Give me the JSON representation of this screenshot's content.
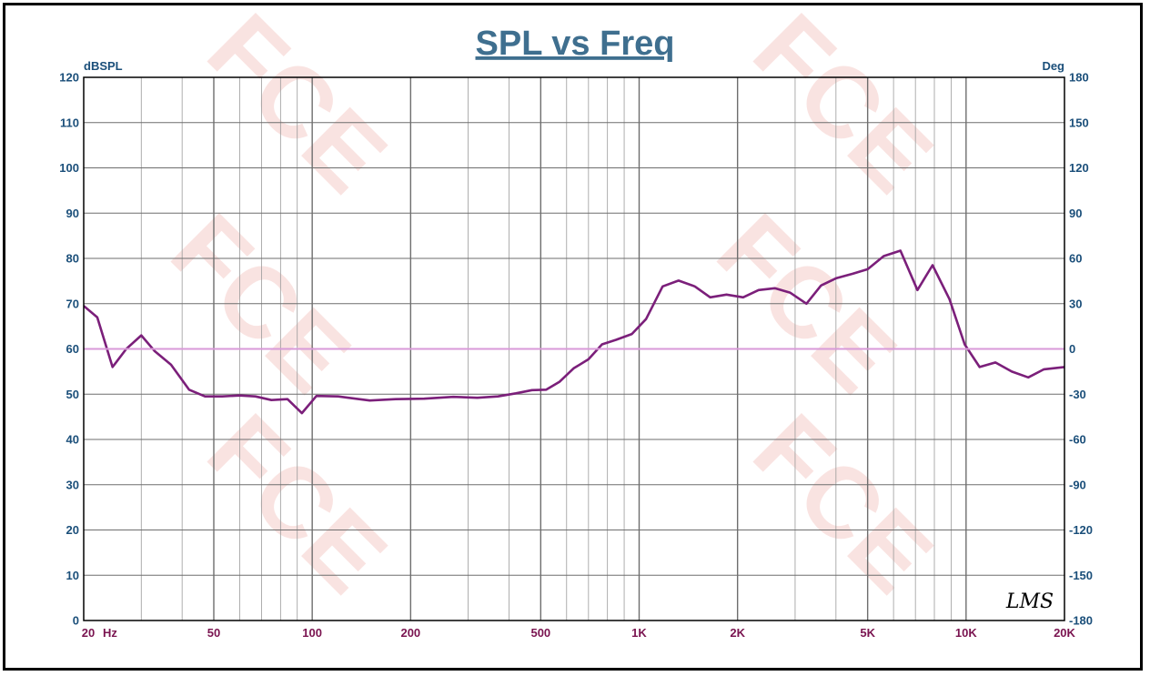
{
  "chart_data": {
    "type": "line",
    "title": "SPL vs Freq",
    "ylabel_left": "dBSPL",
    "ylabel_right": "Deg",
    "x_scale": "log",
    "xlim": [
      20,
      20000
    ],
    "ylim_left": [
      0,
      120
    ],
    "ylim_right": [
      -180,
      180
    ],
    "grid": true,
    "x_tick_labels": [
      {
        "value": 20,
        "label": "20"
      },
      {
        "value": 50,
        "label": "50"
      },
      {
        "value": 100,
        "label": "100"
      },
      {
        "value": 200,
        "label": "200"
      },
      {
        "value": 500,
        "label": "500"
      },
      {
        "value": 1000,
        "label": "1K"
      },
      {
        "value": 2000,
        "label": "2K"
      },
      {
        "value": 5000,
        "label": "5K"
      },
      {
        "value": 10000,
        "label": "10K"
      },
      {
        "value": 20000,
        "label": "20K"
      }
    ],
    "x_unit_label": "Hz",
    "y_left_ticks": [
      "0",
      "10",
      "20",
      "30",
      "40",
      "50",
      "60",
      "70",
      "80",
      "90",
      "100",
      "110",
      "120"
    ],
    "y_right_ticks": [
      "-180",
      "-150",
      "-120",
      "-90",
      "-60",
      "-30",
      "0",
      "30",
      "60",
      "90",
      "120",
      "150",
      "180"
    ],
    "series": [
      {
        "axis": "left",
        "color": "#7b1f7a",
        "points": [
          [
            20,
            69.5
          ],
          [
            22,
            67
          ],
          [
            24.5,
            56
          ],
          [
            27,
            60
          ],
          [
            30,
            63
          ],
          [
            33,
            59.5
          ],
          [
            37,
            56.5
          ],
          [
            42,
            51
          ],
          [
            47,
            49.5
          ],
          [
            53,
            49.5
          ],
          [
            60,
            49.7
          ],
          [
            67,
            49.5
          ],
          [
            75,
            48.7
          ],
          [
            84,
            48.9
          ],
          [
            93,
            45.8
          ],
          [
            103,
            49.6
          ],
          [
            120,
            49.5
          ],
          [
            150,
            48.6
          ],
          [
            180,
            48.9
          ],
          [
            220,
            49
          ],
          [
            270,
            49.4
          ],
          [
            320,
            49.2
          ],
          [
            370,
            49.5
          ],
          [
            420,
            50.2
          ],
          [
            470,
            50.9
          ],
          [
            520,
            51
          ],
          [
            570,
            52.7
          ],
          [
            630,
            55.7
          ],
          [
            700,
            57.7
          ],
          [
            770,
            61
          ],
          [
            850,
            62
          ],
          [
            950,
            63.3
          ],
          [
            1050,
            66.6
          ],
          [
            1180,
            73.8
          ],
          [
            1320,
            75.1
          ],
          [
            1480,
            73.8
          ],
          [
            1650,
            71.4
          ],
          [
            1850,
            72
          ],
          [
            2080,
            71.4
          ],
          [
            2320,
            73
          ],
          [
            2600,
            73.4
          ],
          [
            2900,
            72.4
          ],
          [
            3250,
            70
          ],
          [
            3600,
            74
          ],
          [
            4000,
            75.6
          ],
          [
            4500,
            76.6
          ],
          [
            5000,
            77.6
          ],
          [
            5600,
            80.5
          ],
          [
            6300,
            81.7
          ],
          [
            7100,
            73
          ],
          [
            7900,
            78.5
          ],
          [
            8900,
            71
          ],
          [
            9900,
            61
          ],
          [
            11000,
            56
          ],
          [
            12300,
            57
          ],
          [
            13800,
            55
          ],
          [
            15500,
            53.7
          ],
          [
            17300,
            55.5
          ],
          [
            20000,
            56
          ]
        ]
      },
      {
        "axis": "right",
        "color": "#d89ad8",
        "points": [
          [
            20,
            0
          ],
          [
            20000,
            0
          ]
        ]
      }
    ],
    "watermark": "FCE",
    "signature": "LMS"
  }
}
